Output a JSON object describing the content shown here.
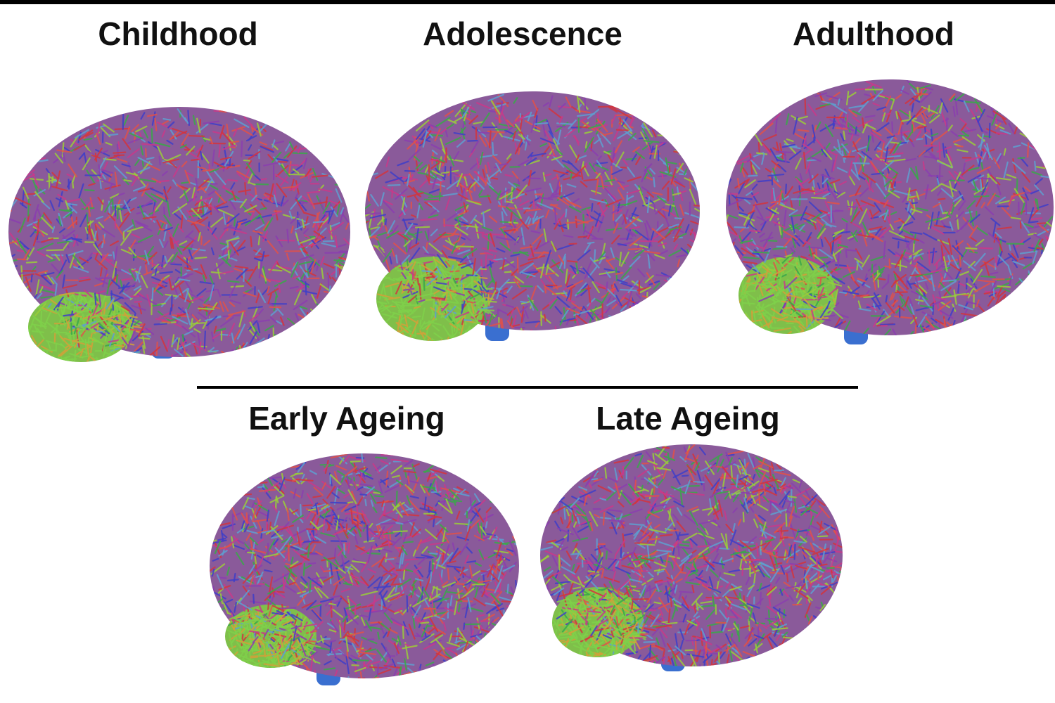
{
  "panels": [
    {
      "label": "Childhood"
    },
    {
      "label": "Adolescence"
    },
    {
      "label": "Adulthood"
    },
    {
      "label": "Early Ageing"
    },
    {
      "label": "Late Ageing"
    }
  ]
}
